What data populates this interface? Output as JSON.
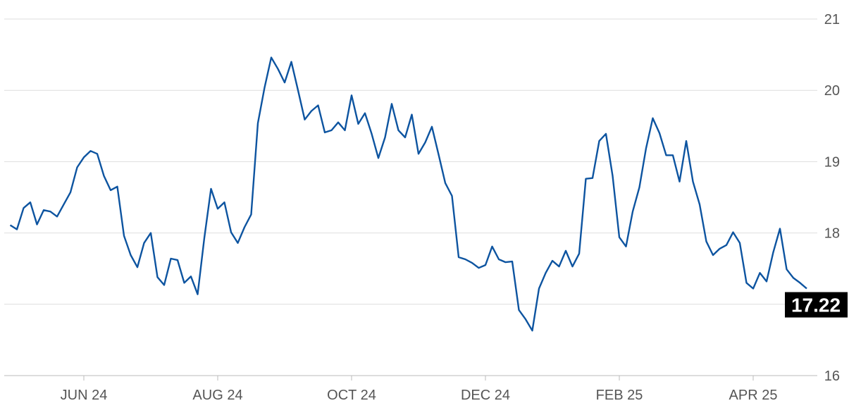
{
  "chart_data": {
    "type": "line",
    "categories": [
      null,
      null,
      null,
      null,
      null,
      null,
      null,
      null,
      null,
      null,
      null,
      "JUN 24",
      null,
      null,
      null,
      null,
      null,
      null,
      null,
      null,
      null,
      null,
      null,
      null,
      null,
      null,
      null,
      null,
      null,
      null,
      null,
      "AUG 24",
      null,
      null,
      null,
      null,
      null,
      null,
      null,
      null,
      null,
      null,
      null,
      null,
      null,
      null,
      null,
      null,
      null,
      null,
      null,
      "OCT 24",
      null,
      null,
      null,
      null,
      null,
      null,
      null,
      null,
      null,
      null,
      null,
      null,
      null,
      null,
      null,
      null,
      null,
      null,
      null,
      "DEC 24",
      null,
      null,
      null,
      null,
      null,
      null,
      null,
      null,
      null,
      null,
      null,
      null,
      null,
      null,
      null,
      null,
      null,
      null,
      null,
      "FEB 25",
      null,
      null,
      null,
      null,
      null,
      null,
      null,
      null,
      null,
      null,
      null,
      null,
      null,
      null,
      null,
      null,
      null,
      null,
      null,
      "APR 25",
      null,
      null,
      null,
      null,
      null,
      null,
      null,
      null
    ],
    "series": [
      {
        "color": "#0d54a0",
        "values": [
          18.11,
          18.05,
          18.35,
          18.43,
          18.12,
          18.32,
          18.3,
          18.23,
          18.4,
          18.57,
          18.92,
          19.06,
          19.15,
          19.11,
          18.8,
          18.6,
          18.65,
          17.96,
          17.69,
          17.52,
          17.86,
          18.0,
          17.38,
          17.27,
          17.64,
          17.62,
          17.3,
          17.39,
          17.14,
          17.93,
          18.62,
          18.34,
          18.43,
          18.01,
          17.86,
          18.08,
          18.26,
          19.54,
          20.04,
          20.46,
          20.3,
          20.11,
          20.4,
          20.0,
          19.59,
          19.71,
          19.79,
          19.41,
          19.44,
          19.55,
          19.44,
          19.93,
          19.53,
          19.68,
          19.39,
          19.05,
          19.34,
          19.81,
          19.44,
          19.34,
          19.66,
          19.11,
          19.27,
          19.49,
          19.1,
          18.7,
          18.52,
          17.66,
          17.63,
          17.58,
          17.51,
          17.55,
          17.81,
          17.63,
          17.59,
          17.6,
          16.92,
          16.79,
          16.63,
          17.22,
          17.44,
          17.61,
          17.53,
          17.75,
          17.53,
          17.71,
          18.76,
          18.77,
          19.29,
          19.39,
          18.8,
          17.94,
          17.81,
          18.3,
          18.64,
          19.19,
          19.61,
          19.4,
          19.09,
          19.09,
          18.72,
          19.29,
          18.72,
          18.4,
          17.88,
          17.69,
          17.78,
          17.83,
          18.01,
          17.86,
          17.3,
          17.22,
          17.44,
          17.32,
          17.73,
          18.06,
          17.49,
          17.37,
          17.3,
          17.22
        ]
      }
    ],
    "ylim": [
      16,
      21
    ],
    "yticks": [
      16,
      17,
      18,
      19,
      20,
      21
    ],
    "grid": true,
    "last_value_box": true
  }
}
